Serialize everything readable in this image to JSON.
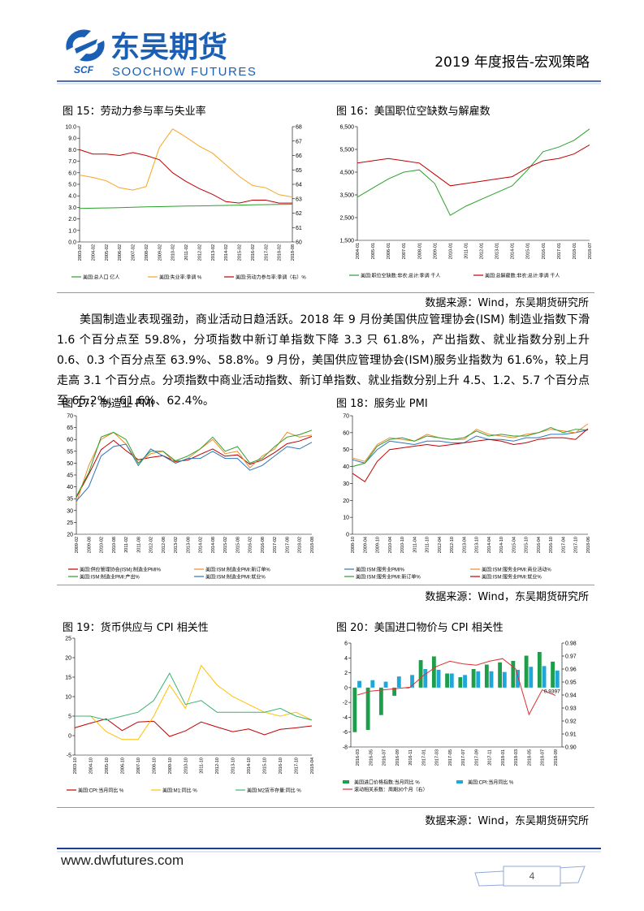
{
  "header": {
    "logo_cn": "东吴期货",
    "logo_en": "SOOCHOW FUTURES",
    "logo_abbr": "SCF",
    "report_title": "2019 年度报告-宏观策略"
  },
  "figures": [
    {
      "caption": "图 15：劳动力参与率与失业率",
      "chart_data": {
        "type": "line",
        "categories": [
          "2003-02",
          "2004-02",
          "2005-02",
          "2006-02",
          "2007-02",
          "2008-02",
          "2009-02",
          "2010-02",
          "2011-02",
          "2012-02",
          "2013-02",
          "2014-02",
          "2015-02",
          "2016-02",
          "2017-02",
          "2018-02",
          "2018-08"
        ],
        "ylim": [
          0,
          10
        ],
        "yticks": [
          {
            "value": 0,
            "label": "0.0"
          },
          {
            "value": 1,
            "label": "1.0"
          },
          {
            "value": 2,
            "label": "2.0"
          },
          {
            "value": 3,
            "label": "3.0"
          },
          {
            "value": 4,
            "label": "4.0"
          },
          {
            "value": 5,
            "label": "5.0"
          },
          {
            "value": 6,
            "label": "6.0"
          },
          {
            "value": 7,
            "label": "7.0"
          },
          {
            "value": 8,
            "label": "8.0"
          },
          {
            "value": 9,
            "label": "9.0"
          },
          {
            "value": 10,
            "label": "10.0"
          }
        ],
        "y2lim": [
          60,
          68
        ],
        "y2ticks": [
          60,
          61,
          62,
          63,
          64,
          65,
          66,
          67,
          68
        ],
        "series": [
          {
            "name": "美国:总人口 亿人",
            "color": "#2ca02c",
            "values": [
              2.9,
              2.93,
              2.95,
              2.98,
              3.01,
              3.04,
              3.06,
              3.09,
              3.11,
              3.13,
              3.15,
              3.17,
              3.2,
              3.22,
              3.24,
              3.26,
              3.27
            ]
          },
          {
            "name": "美国:失业率:季调 %",
            "color": "#f5a623",
            "values": [
              5.8,
              5.6,
              5.3,
              4.7,
              4.5,
              4.8,
              8.2,
              9.8,
              9.1,
              8.3,
              7.7,
              6.7,
              5.7,
              4.9,
              4.7,
              4.1,
              3.9
            ]
          },
          {
            "name": "美国:劳动力参与率:季调（右）%",
            "color": "#c00000",
            "axis": "y2",
            "values": [
              66.4,
              66.1,
              66.1,
              66.0,
              66.2,
              66.0,
              65.7,
              64.8,
              64.2,
              63.7,
              63.3,
              62.8,
              62.7,
              62.9,
              62.9,
              62.7,
              62.7
            ]
          }
        ]
      }
    },
    {
      "caption": "图 16：美国职位空缺数与解雇数",
      "chart_data": {
        "type": "line",
        "categories": [
          "2004-01",
          "2005-01",
          "2006-01",
          "2007-01",
          "2008-01",
          "2009-01",
          "2010-01",
          "2011-01",
          "2012-01",
          "2013-01",
          "2014-01",
          "2015-01",
          "2016-01",
          "2017-01",
          "2018-01",
          "2018-07"
        ],
        "ylim": [
          1500,
          6500
        ],
        "yticks": [
          {
            "value": 1500,
            "label": "1,500"
          },
          {
            "value": 2500,
            "label": "2,500"
          },
          {
            "value": 3500,
            "label": "3,500"
          },
          {
            "value": 4500,
            "label": "4,500"
          },
          {
            "value": 5500,
            "label": "5,500"
          },
          {
            "value": 6500,
            "label": "6,500"
          }
        ],
        "series": [
          {
            "name": "美国:职位空缺数:非农:总计:季调 千人",
            "color": "#2ca02c",
            "values": [
              3400,
              3800,
              4200,
              4500,
              4600,
              4000,
              2600,
              3000,
              3300,
              3600,
              3900,
              4600,
              5400,
              5600,
              5900,
              6400
            ]
          },
          {
            "name": "美国:总解雇数:非农:总计:季调 千人",
            "color": "#c00000",
            "values": [
              4900,
              5000,
              5100,
              5000,
              4900,
              4400,
              3900,
              4000,
              4100,
              4200,
              4300,
              4700,
              5000,
              5100,
              5300,
              5700
            ]
          }
        ]
      }
    },
    {
      "caption": "图 17：制造业 PMI",
      "chart_data": {
        "type": "line",
        "categories": [
          "2009-02",
          "2009-08",
          "2010-02",
          "2010-08",
          "2011-02",
          "2011-08",
          "2012-02",
          "2012-08",
          "2013-02",
          "2013-08",
          "2014-02",
          "2014-08",
          "2015-02",
          "2015-08",
          "2016-02",
          "2016-08",
          "2017-02",
          "2017-08",
          "2018-02",
          "2018-08"
        ],
        "ylim": [
          20,
          70
        ],
        "yticks": [
          20,
          25,
          30,
          35,
          40,
          45,
          50,
          55,
          60,
          65,
          70
        ],
        "series": [
          {
            "name": "美国:供应管理协会(ISM):制造业PMI%",
            "color": "#c00000",
            "values": [
              35.6,
              45.3,
              55.7,
              59.6,
              55.3,
              51.4,
              52.4,
              53.1,
              50.7,
              51.3,
              53.7,
              56.0,
              52.9,
              53.5,
              49.5,
              51.3,
              54.5,
              58.2,
              59.3,
              61.3
            ]
          },
          {
            "name": "美国:ISM:制造业PMI:新订单%",
            "color": "#f08c28",
            "values": [
              33.2,
              49,
              60,
              63,
              58,
              50,
              54,
              55,
              50,
              52,
              56,
              60,
              54,
              55,
              48,
              53,
              56,
              63,
              61,
              61.8
            ]
          },
          {
            "name": "美国:ISM:制造业PMI:产出%",
            "color": "#2ca02c",
            "values": [
              36,
              46,
              61,
              63,
              60,
              50,
              55,
              55,
              51,
              53,
              56,
              61,
              55,
              57,
              50,
              52,
              57,
              61,
              62,
              63.9
            ]
          },
          {
            "name": "美国:ISM:制造业PMI:就业%",
            "color": "#2e75b6",
            "values": [
              34,
              40,
              53,
              57,
              58,
              49,
              56,
              53,
              50,
              52,
              52,
              55,
              52,
              52,
              47,
              49,
              53,
              57,
              56,
              58.8
            ]
          }
        ]
      }
    },
    {
      "caption": "图 18：服务业 PMI",
      "chart_data": {
        "type": "line",
        "categories": [
          "2008-10",
          "2009-04",
          "2009-10",
          "2010-04",
          "2010-10",
          "2011-04",
          "2011-10",
          "2012-04",
          "2012-10",
          "2013-04",
          "2013-10",
          "2014-04",
          "2014-10",
          "2015-04",
          "2015-10",
          "2016-04",
          "2016-10",
          "2017-04",
          "2017-10",
          "2018-06"
        ],
        "ylim": [
          0,
          70
        ],
        "yticks": [
          0,
          10,
          20,
          30,
          40,
          50,
          60,
          70
        ],
        "series": [
          {
            "name": "美国:ISM:服务业PMI%",
            "color": "#2e75b6",
            "values": [
              44,
              42,
              50,
              55,
              54,
              53,
              55,
              55,
              54,
              54,
              58,
              56,
              56,
              55,
              57,
              57,
              59,
              59,
              60,
              61.6
            ]
          },
          {
            "name": "美国:ISM:服务业PMI:商业活动%",
            "color": "#f08c28",
            "values": [
              45,
              43,
              53,
              57,
              56,
              55,
              59,
              57,
              56,
              56,
              62,
              59,
              58,
              57,
              59,
              60,
              62,
              61,
              60,
              65.2
            ]
          },
          {
            "name": "美国:ISM:服务业PMI:新订单%",
            "color": "#2ca02c",
            "values": [
              40,
              42,
              52,
              56,
              57,
              55,
              58,
              57,
              56,
              57,
              61,
              58,
              59,
              58,
              58,
              60,
              63,
              60,
              62,
              61.6
            ]
          },
          {
            "name": "美国:ISM:服务业PMI:就业%",
            "color": "#c00000",
            "values": [
              36,
              31,
              43,
              50,
              51,
              52,
              53,
              52,
              53,
              54,
              55,
              56,
              55,
              53,
              54,
              56,
              57,
              57,
              56,
              62.4
            ]
          }
        ]
      }
    },
    {
      "caption": "图 19：货币供应与 CPI 相关性",
      "chart_data": {
        "type": "line",
        "categories": [
          "2003-10",
          "2004-10",
          "2005-10",
          "2006-10",
          "2007-10",
          "2008-10",
          "2009-10",
          "2010-10",
          "2011-10",
          "2012-10",
          "2013-10",
          "2014-10",
          "2015-10",
          "2016-10",
          "2017-10",
          "2018-04"
        ],
        "ylim": [
          -5,
          25
        ],
        "yticks": [
          -5,
          0,
          5,
          10,
          15,
          20,
          25
        ],
        "series": [
          {
            "name": "美国:CPI:当月同比 %",
            "color": "#c00000",
            "values": [
              2.0,
              3.2,
              4.3,
              1.3,
              3.5,
              3.7,
              -0.2,
              1.2,
              3.5,
              2.2,
              1.0,
              1.7,
              0.2,
              1.6,
              2.0,
              2.5
            ]
          },
          {
            "name": "美国:M1:同比 %",
            "color": "#ffc000",
            "values": [
              5,
              5,
              1,
              -1,
              -1,
              5,
              13,
              7,
              18,
              13,
              10,
              8,
              6,
              5,
              6,
              4
            ]
          },
          {
            "name": "美国:M2货币存量:同比 %",
            "color": "#3cb371",
            "values": [
              5,
              5,
              4,
              5,
              6,
              9,
              16,
              8,
              9,
              6,
              6,
              6,
              6,
              7,
              5,
              4
            ]
          }
        ]
      }
    },
    {
      "caption": "图 20：美国进口物价与 CPI 相关性",
      "chart_data": {
        "type": "bar",
        "categories": [
          "2016-03",
          "2016-05",
          "2016-07",
          "2016-09",
          "2016-11",
          "2017-01",
          "2017-03",
          "2017-05",
          "2017-07",
          "2017-09",
          "2017-11",
          "2018-01",
          "2018-03",
          "2018-05",
          "2018-07",
          "2018-09"
        ],
        "ylim": [
          -8,
          6
        ],
        "yticks": [
          -8,
          -6,
          -4,
          -2,
          0,
          2,
          4,
          6
        ],
        "y2lim": [
          0.9,
          0.98
        ],
        "y2ticks": [
          {
            "value": 0.9,
            "label": "0.90"
          },
          0.91,
          0.92,
          0.93,
          0.94,
          0.95,
          0.96,
          0.97,
          0.98
        ],
        "series": [
          {
            "name": "美国进口价格指数:当月同比 %",
            "color": "#1e9e4a",
            "values": [
              -6.0,
              -5.7,
              -3.7,
              -1.1,
              -0.1,
              3.7,
              4.2,
              1.9,
              1.4,
              2.5,
              3.1,
              3.4,
              3.6,
              4.3,
              4.8,
              3.5
            ]
          },
          {
            "name": "美国:CPI:当月同比 %",
            "color": "#21a6d9",
            "values": [
              0.9,
              1.0,
              0.8,
              1.5,
              1.7,
              2.5,
              2.4,
              1.9,
              1.7,
              2.2,
              2.2,
              2.1,
              2.4,
              2.8,
              2.9,
              2.3
            ]
          },
          {
            "name": "滚动相关系数：周期30个月（右）",
            "color": "#e03030",
            "type": "line",
            "axis": "y2",
            "values": [
              0.94,
              0.943,
              0.944,
              0.945,
              0.946,
              0.955,
              0.962,
              0.966,
              0.964,
              0.963,
              0.966,
              0.968,
              0.96,
              0.925,
              0.944,
              0.9397
            ],
            "value_labels": [
              null,
              null,
              null,
              null,
              null,
              null,
              null,
              null,
              null,
              null,
              null,
              null,
              null,
              null,
              null,
              "0.9397"
            ]
          }
        ]
      }
    }
  ],
  "paragraph": "美国制造业表现强劲，商业活动日趋活跃。2018 年 9 月份美国供应管理协会(ISM) 制造业指数下滑 1.6 个百分点至 59.8%，分项指数中新订单指数下降 3.3 只 61.8%，产出指数、就业指数分别上升 0.6、0.3 个百分点至 63.9%、58.8%。9 月份，美国供应管理协会(ISM)服务业指数为 61.6%，较上月走高 3.1 个百分点。分项指数中商业活动指数、新订单指数、就业指数分别上升 4.5、1.2、5.7 个百分点至 65.2%、61.6%、62.4%。",
  "sources": [
    "数据来源：Wind，东吴期货研究所",
    "数据来源：Wind，东吴期货研究所",
    "数据来源：Wind，东吴期货研究所"
  ],
  "footer": {
    "website": "www.dwfutures.com",
    "page_number": "4"
  }
}
